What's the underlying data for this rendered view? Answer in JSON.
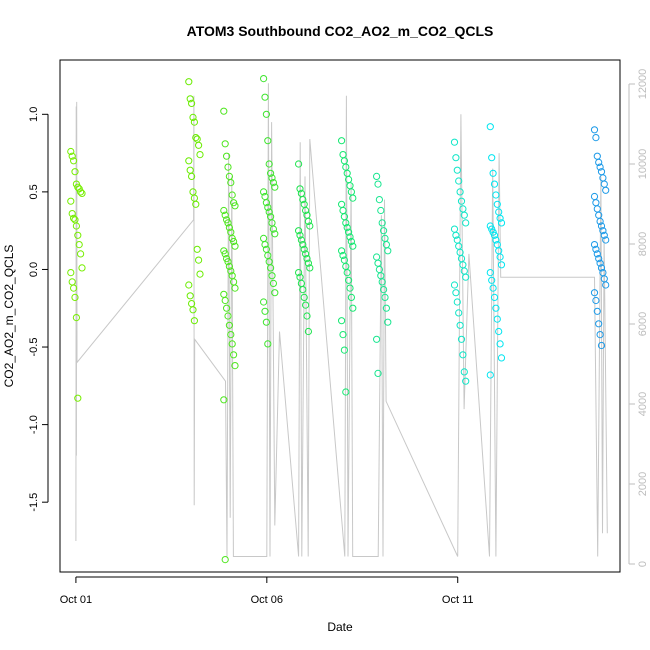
{
  "chart_data": {
    "type": "scatter",
    "title": "ATOM3 Southbound CO2_AO2_m_CO2_QCLS",
    "xlabel": "Date",
    "ylabel": "CO2_AO2_m_CO2_QCLS",
    "x_axis": {
      "type": "date",
      "range": [
        "2016-09-30T14:00",
        "2016-10-15T06:00"
      ],
      "ticks": [
        {
          "value": "2016-10-01",
          "label": "Oct 01"
        },
        {
          "value": "2016-10-06",
          "label": "Oct 06"
        },
        {
          "value": "2016-10-11",
          "label": "Oct 11"
        }
      ]
    },
    "y_left": {
      "range": [
        -1.95,
        1.35
      ],
      "ticks": [
        {
          "value": -1.5,
          "label": "-1.5"
        },
        {
          "value": -1.0,
          "label": "-1.0"
        },
        {
          "value": -0.5,
          "label": "-0.5"
        },
        {
          "value": 0.0,
          "label": "0.0"
        },
        {
          "value": 0.5,
          "label": "0.5"
        },
        {
          "value": 1.0,
          "label": "1.0"
        }
      ]
    },
    "y_right": {
      "range": [
        -200,
        12600
      ],
      "ticks": [
        {
          "value": 0,
          "label": "0"
        },
        {
          "value": 2000,
          "label": "2000"
        },
        {
          "value": 4000,
          "label": "4000"
        },
        {
          "value": 6000,
          "label": "6000"
        },
        {
          "value": 8000,
          "label": "8000"
        },
        {
          "value": 10000,
          "label": "10000"
        },
        {
          "value": 12000,
          "label": "12000"
        }
      ]
    },
    "grid": false,
    "colors": {
      "altitude_line": "#c8c8c8",
      "axis": "#000000",
      "right_axis": "#bdbdbd"
    },
    "altitude_trace": [
      [
        "2016-10-01T00:00",
        -1.75
      ],
      [
        "2016-10-01T00:10",
        1.05
      ],
      [
        "2016-10-01T00:20",
        -1.2
      ],
      [
        "2016-10-01T00:30",
        1.08
      ],
      [
        "2016-10-01T00:40",
        -0.6
      ],
      [
        "2016-10-04T02:00",
        0.32
      ],
      [
        "2016-10-04T02:10",
        1.12
      ],
      [
        "2016-10-04T02:20",
        -1.52
      ],
      [
        "2016-10-04T02:40",
        -0.45
      ],
      [
        "2016-10-04T22:00",
        -0.72
      ],
      [
        "2016-10-04T23:00",
        -1.85
      ],
      [
        "2016-10-05T00:00",
        0.75
      ],
      [
        "2016-10-05T01:00",
        -1.6
      ],
      [
        "2016-10-05T02:00",
        0.6
      ],
      [
        "2016-10-05T03:00",
        -1.85
      ],
      [
        "2016-10-06T00:00",
        -1.85
      ],
      [
        "2016-10-06T01:00",
        1.2
      ],
      [
        "2016-10-06T02:00",
        -1.85
      ],
      [
        "2016-10-06T03:00",
        0.95
      ],
      [
        "2016-10-06T05:00",
        -1.65
      ],
      [
        "2016-10-06T08:00",
        -0.4
      ],
      [
        "2016-10-06T20:00",
        -1.85
      ],
      [
        "2016-10-06T21:00",
        0.82
      ],
      [
        "2016-10-06T22:00",
        -1.85
      ],
      [
        "2016-10-07T00:00",
        0.6
      ],
      [
        "2016-10-07T02:00",
        -1.85
      ],
      [
        "2016-10-07T03:00",
        0.84
      ],
      [
        "2016-10-08T01:00",
        -1.85
      ],
      [
        "2016-10-08T02:00",
        1.12
      ],
      [
        "2016-10-08T03:00",
        -1.85
      ],
      [
        "2016-10-08T05:00",
        0.55
      ],
      [
        "2016-10-08T06:00",
        -1.85
      ],
      [
        "2016-10-08T22:00",
        -1.85
      ],
      [
        "2016-10-09T00:00",
        0.35
      ],
      [
        "2016-10-09T01:00",
        -1.85
      ],
      [
        "2016-10-09T02:00",
        0.45
      ],
      [
        "2016-10-09T03:00",
        -0.85
      ],
      [
        "2016-10-11T00:00",
        -1.85
      ],
      [
        "2016-10-11T02:00",
        1.0
      ],
      [
        "2016-10-11T04:00",
        -0.9
      ],
      [
        "2016-10-11T07:00",
        0.1
      ],
      [
        "2016-10-11T20:00",
        -1.85
      ],
      [
        "2016-10-11T22:00",
        0.65
      ],
      [
        "2016-10-12T00:00",
        -1.85
      ],
      [
        "2016-10-12T02:00",
        0.75
      ],
      [
        "2016-10-12T03:00",
        -0.05
      ],
      [
        "2016-10-14T14:00",
        -0.05
      ],
      [
        "2016-10-14T16:00",
        -1.85
      ],
      [
        "2016-10-14T18:00",
        0.6
      ],
      [
        "2016-10-14T19:00",
        -1.7
      ],
      [
        "2016-10-14T20:00",
        0.2
      ],
      [
        "2016-10-14T22:00",
        -1.7
      ]
    ],
    "series": [
      {
        "x": "2016-10-01T00:20",
        "color": "#76ee00",
        "values": [
          0.76,
          0.73,
          0.7,
          0.63,
          0.55,
          0.53,
          0.52,
          0.5,
          0.49,
          0.44,
          0.36,
          0.33,
          0.32,
          0.28,
          0.22,
          0.16,
          0.1,
          0.01,
          -0.02,
          -0.08,
          -0.12,
          -0.18,
          -0.31,
          -0.83
        ]
      },
      {
        "x": "2016-10-04T02:30",
        "color": "#6aec00",
        "values": [
          1.21,
          1.1,
          1.07,
          0.98,
          0.95,
          0.85,
          0.84,
          0.8,
          0.74,
          0.7,
          0.64,
          0.6,
          0.5,
          0.46,
          0.42,
          0.13,
          0.06,
          -0.03,
          -0.1,
          -0.17,
          -0.22,
          -0.26,
          -0.33
        ]
      },
      {
        "x": "2016-10-05T00:30",
        "color": "#4ee61e",
        "values": [
          1.02,
          0.81,
          0.73,
          0.66,
          0.6,
          0.56,
          0.48,
          0.43,
          0.41,
          0.38,
          0.35,
          0.32,
          0.3,
          0.27,
          0.24,
          0.2,
          0.18,
          0.15,
          0.12,
          0.1,
          0.07,
          0.05,
          0.02,
          -0.01,
          -0.04,
          -0.08,
          -0.12,
          -0.16,
          -0.2,
          -0.25,
          -0.3,
          -0.36,
          -0.42,
          -0.48,
          -0.55,
          -0.62,
          -0.84,
          -1.87
        ]
      },
      {
        "x": "2016-10-06T01:30",
        "color": "#3ee52e",
        "values": [
          1.23,
          1.11,
          1.0,
          0.83,
          0.68,
          0.62,
          0.59,
          0.56,
          0.53,
          0.5,
          0.47,
          0.43,
          0.4,
          0.37,
          0.34,
          0.3,
          0.26,
          0.23,
          0.2,
          0.16,
          0.13,
          0.09,
          0.05,
          0.01,
          -0.04,
          -0.09,
          -0.15,
          -0.21,
          -0.27,
          -0.34,
          -0.48
        ]
      },
      {
        "x": "2016-10-06T23:30",
        "color": "#1ee44e",
        "values": [
          0.68,
          0.52,
          0.49,
          0.45,
          0.42,
          0.38,
          0.35,
          0.31,
          0.28,
          0.25,
          0.22,
          0.19,
          0.16,
          0.13,
          0.1,
          0.07,
          0.04,
          0.01,
          -0.02,
          -0.05,
          -0.09,
          -0.13,
          -0.18,
          -0.23,
          -0.3,
          -0.4
        ]
      },
      {
        "x": "2016-10-08T02:30",
        "color": "#14e870",
        "values": [
          0.83,
          0.74,
          0.7,
          0.66,
          0.62,
          0.58,
          0.54,
          0.5,
          0.46,
          0.42,
          0.38,
          0.34,
          0.3,
          0.27,
          0.24,
          0.21,
          0.18,
          0.15,
          0.12,
          0.09,
          0.06,
          0.02,
          -0.02,
          -0.07,
          -0.12,
          -0.18,
          -0.25,
          -0.33,
          -0.42,
          -0.52,
          -0.79
        ]
      },
      {
        "x": "2016-10-09T00:30",
        "color": "#18e690",
        "values": [
          0.6,
          0.55,
          0.45,
          0.38,
          0.3,
          0.25,
          0.2,
          0.16,
          0.12,
          0.08,
          0.04,
          0.0,
          -0.04,
          -0.08,
          -0.13,
          -0.18,
          -0.25,
          -0.34,
          -0.45,
          -0.67
        ]
      },
      {
        "x": "2016-10-11T01:30",
        "color": "#10e6c8",
        "values": [
          0.82,
          0.72,
          0.64,
          0.57,
          0.5,
          0.44,
          0.39,
          0.35,
          0.3,
          0.26,
          0.22,
          0.19,
          0.15,
          0.11,
          0.07,
          0.03,
          -0.01,
          -0.05,
          -0.1,
          -0.15,
          -0.21,
          -0.28,
          -0.36,
          -0.45,
          -0.55,
          -0.66,
          -0.72
        ]
      },
      {
        "x": "2016-10-12T00:00",
        "color": "#00e5f0",
        "values": [
          0.92,
          0.72,
          0.62,
          0.55,
          0.48,
          0.42,
          0.37,
          0.33,
          0.3,
          0.28,
          0.26,
          0.24,
          0.22,
          0.19,
          0.16,
          0.12,
          0.08,
          0.03,
          -0.02,
          -0.07,
          -0.12,
          -0.18,
          -0.25,
          -0.32,
          -0.4,
          -0.48,
          -0.57,
          -0.68
        ]
      },
      {
        "x": "2016-10-14T17:30",
        "color": "#1c9ae8",
        "values": [
          0.9,
          0.85,
          0.73,
          0.69,
          0.66,
          0.63,
          0.59,
          0.55,
          0.51,
          0.47,
          0.43,
          0.39,
          0.35,
          0.31,
          0.28,
          0.25,
          0.22,
          0.19,
          0.16,
          0.13,
          0.1,
          0.07,
          0.04,
          0.01,
          -0.02,
          -0.06,
          -0.1,
          -0.15,
          -0.2,
          -0.27,
          -0.35,
          -0.42,
          -0.49
        ]
      }
    ]
  }
}
